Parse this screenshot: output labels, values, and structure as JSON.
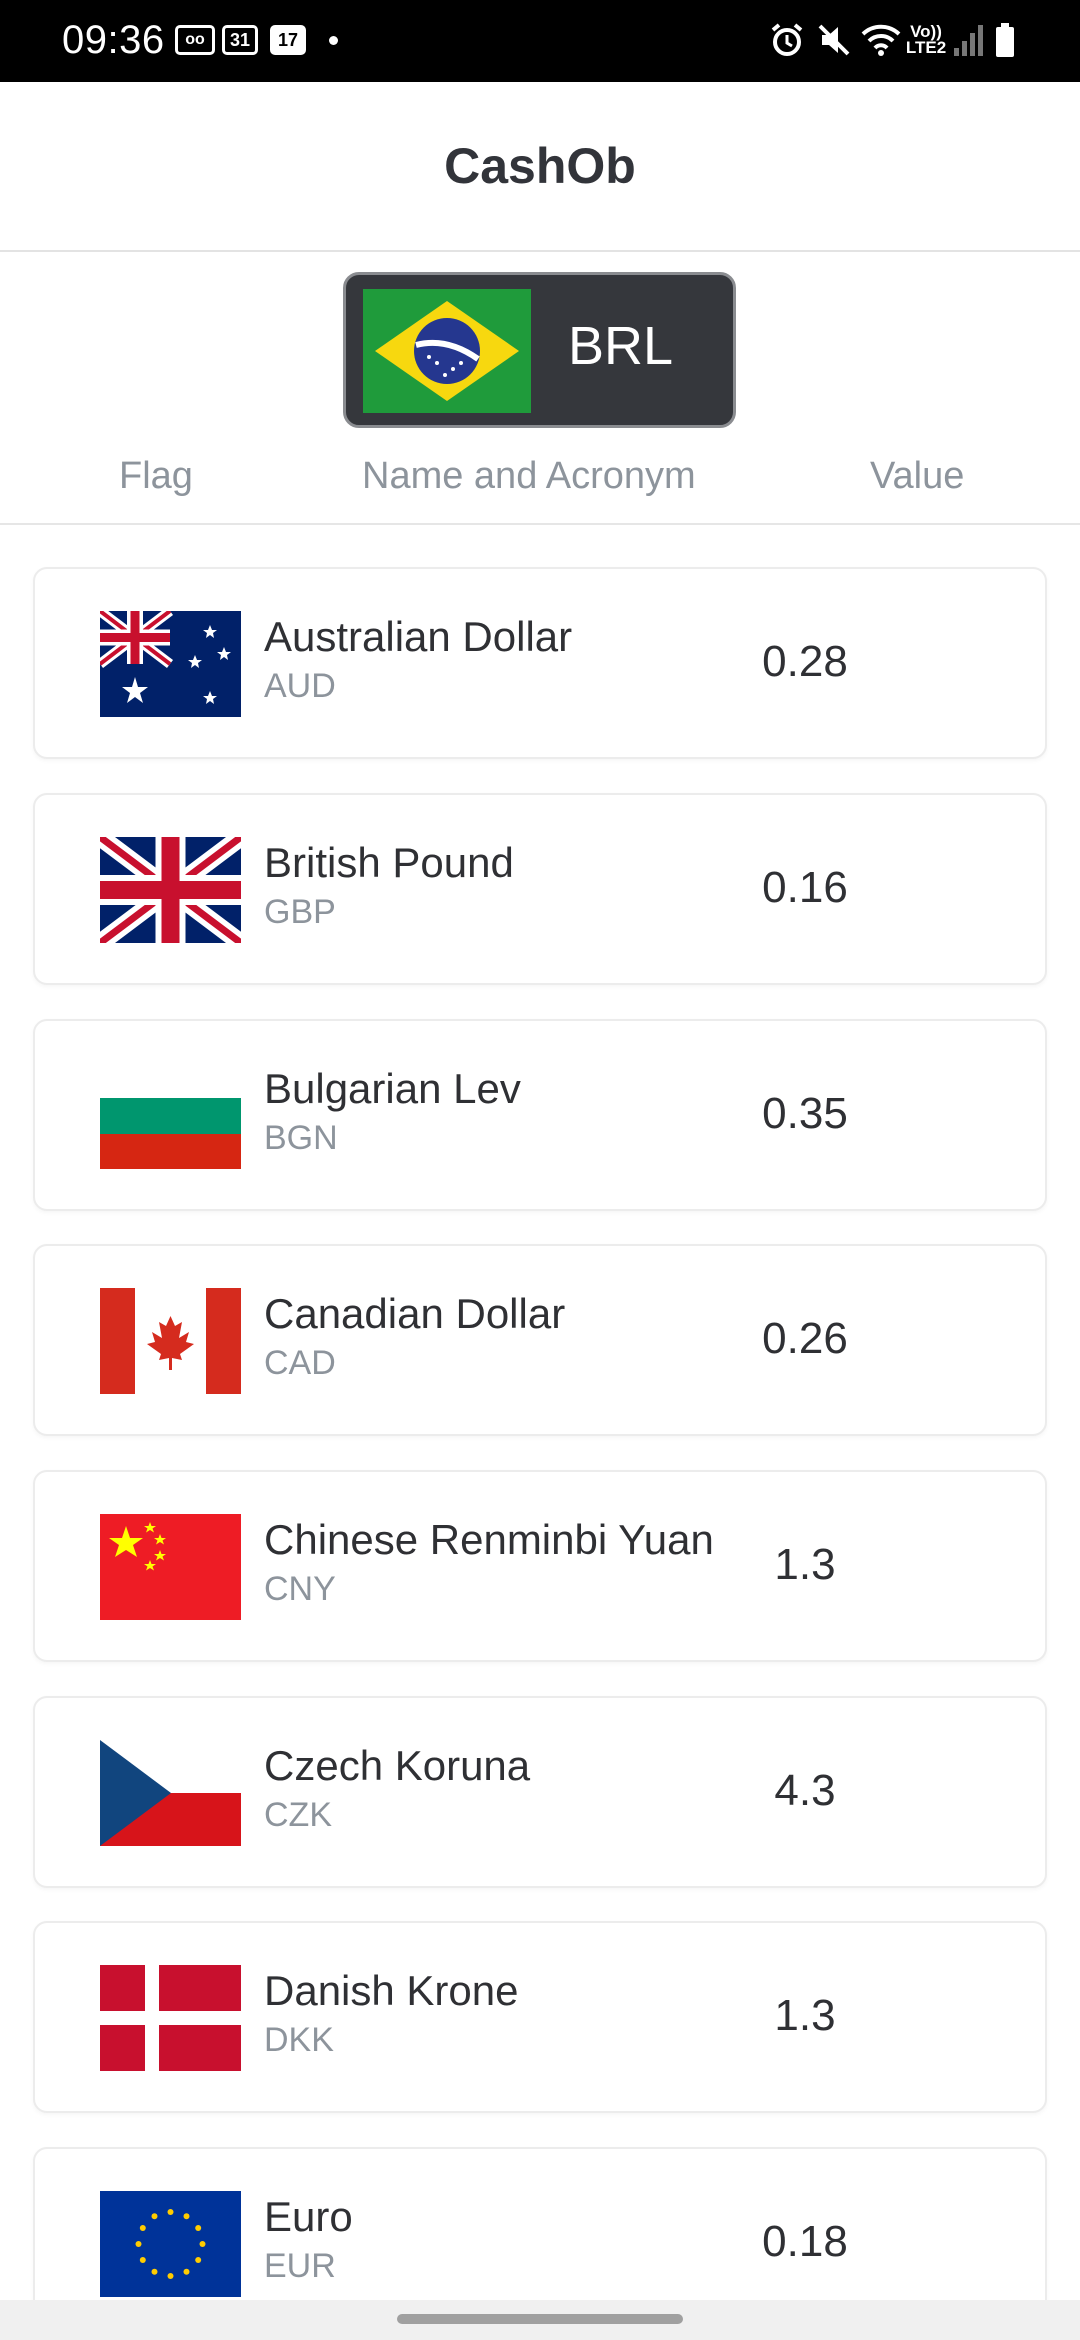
{
  "status_bar": {
    "time": "09:36",
    "notif_voicemail": "oo",
    "notif_calendar_a": "31",
    "notif_calendar_b": "17",
    "network": "Vo))\nLTE2",
    "icons": [
      "voicemail-icon",
      "calendar-icon",
      "calendar-icon",
      "dot-icon",
      "alarm-icon",
      "mute-icon",
      "wifi-icon",
      "signal-icon",
      "battery-icon"
    ]
  },
  "app": {
    "title": "CashOb"
  },
  "base_currency": {
    "code": "BRL",
    "flag": "brazil-flag"
  },
  "columns": {
    "flag": "Flag",
    "name": "Name and Acronym",
    "value": "Value"
  },
  "currencies": [
    {
      "name": "Australian Dollar",
      "code": "AUD",
      "value": "0.28",
      "flag": "australia-flag"
    },
    {
      "name": "British Pound",
      "code": "GBP",
      "value": "0.16",
      "flag": "uk-flag"
    },
    {
      "name": "Bulgarian Lev",
      "code": "BGN",
      "value": "0.35",
      "flag": "bulgaria-flag"
    },
    {
      "name": "Canadian Dollar",
      "code": "CAD",
      "value": "0.26",
      "flag": "canada-flag"
    },
    {
      "name": "Chinese Renminbi Yuan",
      "code": "CNY",
      "value": "1.3",
      "flag": "china-flag"
    },
    {
      "name": "Czech Koruna",
      "code": "CZK",
      "value": "4.3",
      "flag": "czech-flag"
    },
    {
      "name": "Danish Krone",
      "code": "DKK",
      "value": "1.3",
      "flag": "denmark-flag"
    },
    {
      "name": "Euro",
      "code": "EUR",
      "value": "0.18",
      "flag": "eu-flag"
    }
  ]
}
